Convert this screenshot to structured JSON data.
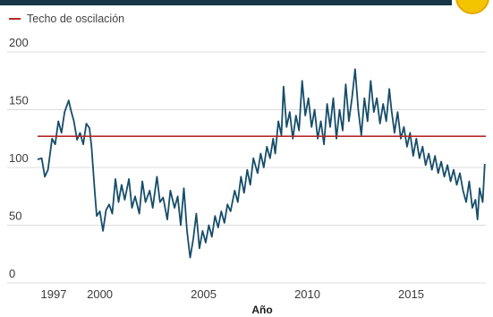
{
  "legend": {
    "ceiling_label": "Techo de oscilación"
  },
  "colors": {
    "series": "#164d6a",
    "ceiling": "#b52a2a",
    "grid": "#dcdcdc",
    "header_bar": "#173749",
    "badge": "#f5c400"
  },
  "chart_data": {
    "type": "line",
    "title": "",
    "xlabel": "Año",
    "ylabel": "",
    "xlim": [
      1997.0,
      2018.6
    ],
    "ylim": [
      0,
      200
    ],
    "xticks": [
      {
        "value": 1997,
        "label": "1997"
      },
      {
        "value": 2000,
        "label": "2000"
      },
      {
        "value": 2005,
        "label": "2005"
      },
      {
        "value": 2010,
        "label": "2010"
      },
      {
        "value": 2015,
        "label": "2015"
      }
    ],
    "yticks": [
      {
        "value": 0,
        "label": "0"
      },
      {
        "value": 50,
        "label": "50"
      },
      {
        "value": 100,
        "label": "100"
      },
      {
        "value": 150,
        "label": "150"
      },
      {
        "value": 200,
        "label": "200"
      }
    ],
    "grid": "horizontal",
    "reference_line": {
      "name": "Techo de oscilación",
      "value": 127
    },
    "series": [
      {
        "values": [
          [
            1997.0,
            107
          ],
          [
            1997.2,
            108
          ],
          [
            1997.35,
            92
          ],
          [
            1997.5,
            98
          ],
          [
            1997.7,
            125
          ],
          [
            1997.85,
            120
          ],
          [
            1998.0,
            140
          ],
          [
            1998.15,
            130
          ],
          [
            1998.3,
            148
          ],
          [
            1998.5,
            158
          ],
          [
            1998.6,
            150
          ],
          [
            1998.75,
            140
          ],
          [
            1998.9,
            124
          ],
          [
            1999.05,
            130
          ],
          [
            1999.2,
            120
          ],
          [
            1999.35,
            138
          ],
          [
            1999.5,
            134
          ],
          [
            1999.6,
            118
          ],
          [
            1999.75,
            80
          ],
          [
            1999.85,
            58
          ],
          [
            2000.0,
            62
          ],
          [
            2000.15,
            45
          ],
          [
            2000.3,
            63
          ],
          [
            2000.45,
            68
          ],
          [
            2000.6,
            60
          ],
          [
            2000.75,
            90
          ],
          [
            2000.9,
            70
          ],
          [
            2001.05,
            85
          ],
          [
            2001.2,
            72
          ],
          [
            2001.4,
            90
          ],
          [
            2001.55,
            65
          ],
          [
            2001.7,
            75
          ],
          [
            2001.9,
            60
          ],
          [
            2002.05,
            88
          ],
          [
            2002.2,
            70
          ],
          [
            2002.4,
            80
          ],
          [
            2002.55,
            65
          ],
          [
            2002.75,
            92
          ],
          [
            2002.9,
            70
          ],
          [
            2003.05,
            74
          ],
          [
            2003.25,
            55
          ],
          [
            2003.4,
            80
          ],
          [
            2003.6,
            65
          ],
          [
            2003.75,
            75
          ],
          [
            2003.9,
            50
          ],
          [
            2004.05,
            82
          ],
          [
            2004.2,
            45
          ],
          [
            2004.35,
            22
          ],
          [
            2004.5,
            38
          ],
          [
            2004.65,
            60
          ],
          [
            2004.8,
            30
          ],
          [
            2004.95,
            45
          ],
          [
            2005.1,
            35
          ],
          [
            2005.25,
            50
          ],
          [
            2005.4,
            40
          ],
          [
            2005.55,
            58
          ],
          [
            2005.7,
            48
          ],
          [
            2005.85,
            62
          ],
          [
            2006.0,
            52
          ],
          [
            2006.15,
            68
          ],
          [
            2006.3,
            62
          ],
          [
            2006.5,
            80
          ],
          [
            2006.65,
            70
          ],
          [
            2006.8,
            92
          ],
          [
            2006.95,
            78
          ],
          [
            2007.1,
            98
          ],
          [
            2007.25,
            85
          ],
          [
            2007.4,
            108
          ],
          [
            2007.6,
            95
          ],
          [
            2007.75,
            112
          ],
          [
            2007.9,
            100
          ],
          [
            2008.05,
            118
          ],
          [
            2008.2,
            108
          ],
          [
            2008.35,
            125
          ],
          [
            2008.45,
            112
          ],
          [
            2008.6,
            140
          ],
          [
            2008.75,
            128
          ],
          [
            2008.85,
            170
          ],
          [
            2009.0,
            135
          ],
          [
            2009.15,
            148
          ],
          [
            2009.3,
            125
          ],
          [
            2009.45,
            145
          ],
          [
            2009.6,
            132
          ],
          [
            2009.75,
            175
          ],
          [
            2009.9,
            145
          ],
          [
            2010.05,
            160
          ],
          [
            2010.2,
            135
          ],
          [
            2010.35,
            150
          ],
          [
            2010.5,
            125
          ],
          [
            2010.65,
            140
          ],
          [
            2010.8,
            120
          ],
          [
            2010.95,
            155
          ],
          [
            2011.1,
            135
          ],
          [
            2011.25,
            160
          ],
          [
            2011.4,
            125
          ],
          [
            2011.55,
            150
          ],
          [
            2011.7,
            132
          ],
          [
            2011.85,
            172
          ],
          [
            2012.0,
            140
          ],
          [
            2012.15,
            160
          ],
          [
            2012.3,
            185
          ],
          [
            2012.45,
            150
          ],
          [
            2012.6,
            128
          ],
          [
            2012.75,
            160
          ],
          [
            2012.9,
            140
          ],
          [
            2013.05,
            175
          ],
          [
            2013.2,
            148
          ],
          [
            2013.35,
            160
          ],
          [
            2013.5,
            138
          ],
          [
            2013.65,
            155
          ],
          [
            2013.8,
            140
          ],
          [
            2013.95,
            168
          ],
          [
            2014.05,
            150
          ],
          [
            2014.2,
            130
          ],
          [
            2014.35,
            148
          ],
          [
            2014.5,
            125
          ],
          [
            2014.65,
            135
          ],
          [
            2014.8,
            118
          ],
          [
            2014.95,
            130
          ],
          [
            2015.1,
            110
          ],
          [
            2015.25,
            125
          ],
          [
            2015.4,
            108
          ],
          [
            2015.55,
            118
          ],
          [
            2015.7,
            102
          ],
          [
            2015.85,
            112
          ],
          [
            2016.0,
            98
          ],
          [
            2016.15,
            110
          ],
          [
            2016.3,
            95
          ],
          [
            2016.45,
            105
          ],
          [
            2016.6,
            92
          ],
          [
            2016.75,
            102
          ],
          [
            2016.9,
            88
          ],
          [
            2017.05,
            98
          ],
          [
            2017.2,
            85
          ],
          [
            2017.35,
            95
          ],
          [
            2017.5,
            80
          ],
          [
            2017.65,
            70
          ],
          [
            2017.8,
            88
          ],
          [
            2017.95,
            65
          ],
          [
            2018.1,
            72
          ],
          [
            2018.2,
            55
          ],
          [
            2018.3,
            82
          ],
          [
            2018.45,
            70
          ],
          [
            2018.55,
            103
          ]
        ]
      }
    ]
  }
}
